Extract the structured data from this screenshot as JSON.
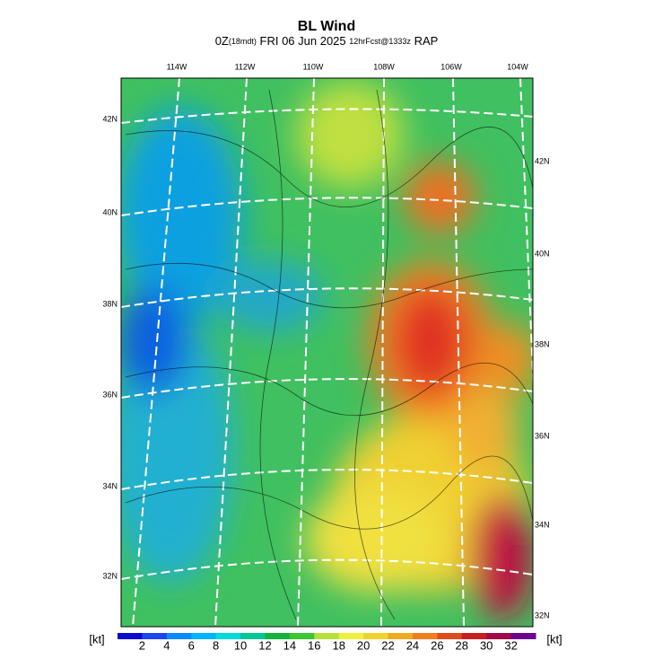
{
  "header": {
    "title": "BL Wind",
    "subtitle": [
      "0Z",
      "(18mdt)",
      "FRI 06 Jun 2025",
      "12hrFcst@1333z",
      "RAP"
    ]
  },
  "map": {
    "lon_labels": [
      "114W",
      "112W",
      "110W",
      "108W",
      "106W",
      "104W"
    ],
    "lat_labels_left": [
      "42N",
      "40N",
      "38N",
      "36N",
      "34N",
      "32N"
    ],
    "lat_labels_right": [
      "42N",
      "40N",
      "38N",
      "36N",
      "34N",
      "32N"
    ]
  },
  "colorbar": {
    "unit_left": "[kt]",
    "unit_right": "[kt]",
    "labels": [
      2,
      4,
      6,
      8,
      10,
      12,
      14,
      16,
      18,
      20,
      22,
      24,
      26,
      28,
      30,
      32
    ]
  }
}
